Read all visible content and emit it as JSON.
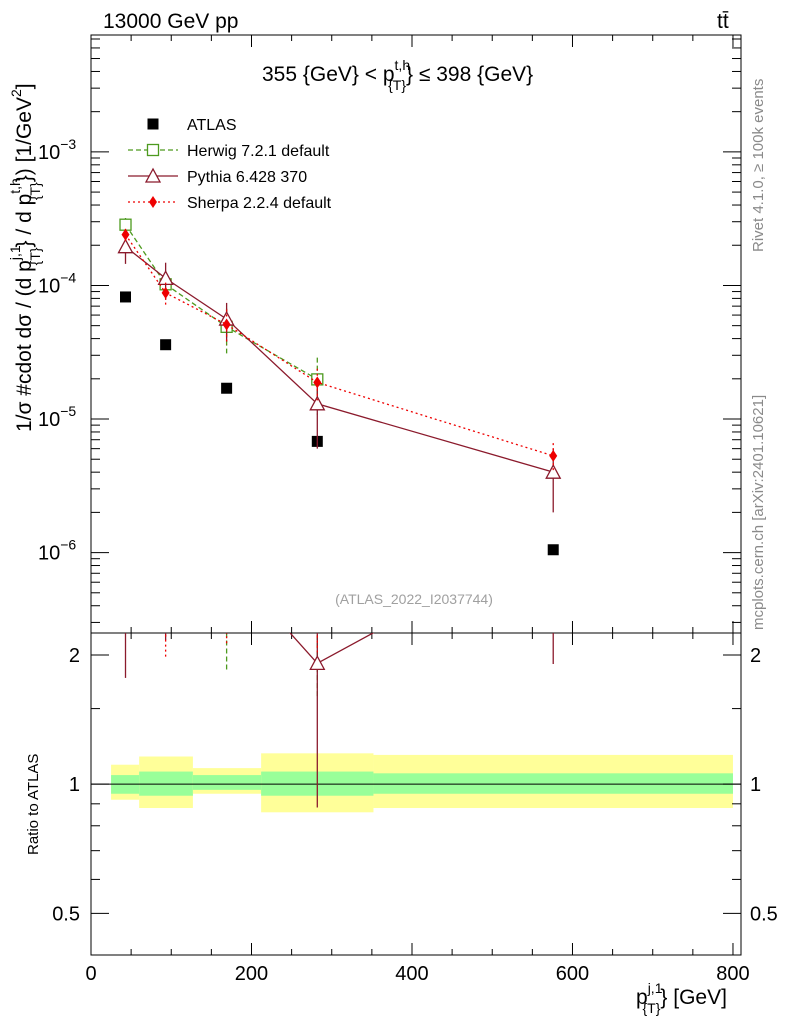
{
  "chart_data": {
    "type": "scatter",
    "header_left": "13000 GeV pp",
    "header_right": "tt̄",
    "title": "355 {GeV} < p{T}t,h ≤ 398 {GeV}",
    "title_parts": {
      "lead": "355 {GeV} < p",
      "sup": "t,h",
      "sub": "{T}",
      "tail": "} ≤ 398 {GeV}"
    },
    "ylabel": "1/σ #cdot dσ / (d p{T}j,1} / d p{T}t,h}) [1/GeV²]",
    "ylabel_parts": {
      "a": "1/σ #cdot dσ / (d p",
      "b": "j,1",
      "c": "{T}",
      "d": "} / d p",
      "e": "t,h",
      "f": "{T}",
      "g": "}) [1/GeV",
      "h": "2",
      "i": "]"
    },
    "xlabel": "p{T}j,1} [GeV]",
    "xlabel_parts": {
      "a": "p",
      "b": "j,1",
      "c": "{T}",
      "d": "} [GeV]"
    },
    "ratio_ylabel": "Ratio to ATLAS",
    "watermark": "(ATLAS_2022_I2037744)",
    "side_text_top": "Rivet 4.1.0, ≥ 100k events",
    "side_text_bottom": "mcplots.cern.ch [arXiv:2401.10621]",
    "xlim": [
      0,
      810
    ],
    "ylim": [
      2.5e-07,
      0.0075
    ],
    "ratio_ylim": [
      0.4,
      2.25
    ],
    "x_ticks": [
      "0",
      "200",
      "400",
      "600",
      "800"
    ],
    "y_ticks": [
      {
        "v": 1e-06,
        "m": "10",
        "e": "−6"
      },
      {
        "v": 1e-05,
        "m": "10",
        "e": "−5"
      },
      {
        "v": 0.0001,
        "m": "10",
        "e": "−4"
      },
      {
        "v": 0.001,
        "m": "10",
        "e": "−3"
      }
    ],
    "ratio_ticks": [
      "0.5",
      "1",
      "2"
    ],
    "bins": [
      [
        25,
        60
      ],
      [
        60,
        127
      ],
      [
        127,
        212
      ],
      [
        212,
        352
      ],
      [
        352,
        800
      ]
    ],
    "x": [
      43,
      93,
      169,
      282,
      576
    ],
    "band_green": [
      [
        0.95,
        1.05
      ],
      [
        0.94,
        1.07
      ],
      [
        0.97,
        1.05
      ],
      [
        0.94,
        1.07
      ],
      [
        0.95,
        1.06
      ]
    ],
    "band_yellow": [
      [
        0.92,
        1.11
      ],
      [
        0.88,
        1.16
      ],
      [
        0.95,
        1.09
      ],
      [
        0.86,
        1.18
      ],
      [
        0.88,
        1.17
      ]
    ],
    "series": [
      {
        "name": "ATLAS",
        "color": "#000000",
        "marker": "square",
        "values": [
          8.2e-05,
          3.6e-05,
          1.7e-05,
          6.8e-06,
          1.05e-06
        ],
        "errors": [
          0,
          0,
          0,
          0,
          0
        ]
      },
      {
        "name": "Herwig 7.2.1 default",
        "color": "#4d9a1f",
        "marker": "open-square",
        "dash": "5,3",
        "values": [
          0.000285,
          0.000102,
          4.9e-05,
          1.98e-05,
          0
        ],
        "errors": [
          3.5e-05,
          1.7e-05,
          1.8e-05,
          9e-06,
          0
        ]
      },
      {
        "name": "Pythia 6.428 370",
        "color": "#8b1a2c",
        "marker": "open-triangle",
        "dash": "",
        "values": [
          0.000195,
          0.000113,
          5.6e-05,
          1.3e-05,
          4e-06
        ],
        "errors": [
          5e-05,
          3.5e-05,
          1.8e-05,
          7e-06,
          2e-06
        ]
      },
      {
        "name": "Sherpa 2.2.4 default",
        "color": "#ee0000",
        "marker": "diamond",
        "dash": "2,3",
        "values": [
          0.00024,
          8.8e-05,
          5.1e-05,
          1.88e-05,
          5.3e-06
        ],
        "errors": [
          2.5e-05,
          1.7e-05,
          1.5e-05,
          5e-06,
          1.3e-06
        ]
      }
    ]
  }
}
